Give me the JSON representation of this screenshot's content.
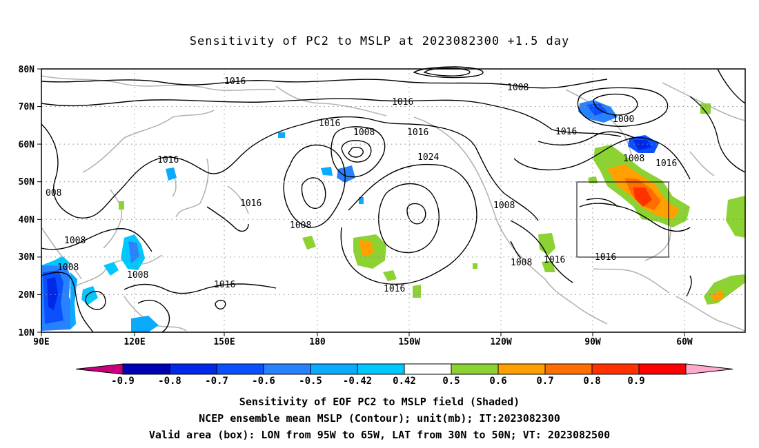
{
  "title": "Sensitivity of PC2 to MSLP at 2023082300 +1.5 day",
  "lat_labels": [
    "80N",
    "70N",
    "60N",
    "50N",
    "40N",
    "30N",
    "20N",
    "10N"
  ],
  "lon_labels": [
    "90E",
    "120E",
    "150E",
    "180",
    "150W",
    "120W",
    "90W",
    "60W"
  ],
  "contour_labels": [
    "1016",
    "1008",
    "1016",
    "1016",
    "1008",
    "1016",
    "1000",
    "1016",
    "1008",
    "1016",
    "008",
    "1016",
    "1024",
    "1016",
    "1008",
    "1008",
    "1008",
    "1008",
    "1016",
    "1016",
    "1016",
    "1008",
    "1016",
    "1008"
  ],
  "colorbar": {
    "labels": [
      "-0.9",
      "-0.8",
      "-0.7",
      "-0.6",
      "-0.5",
      "-0.42",
      "0.42",
      "0.5",
      "0.6",
      "0.7",
      "0.8",
      "0.9"
    ],
    "colors": [
      "#c8007a",
      "#0000b4",
      "#0028e8",
      "#0a50ff",
      "#2882ff",
      "#0aaaff",
      "#00c8ff",
      "#ffffff",
      "#8cd232",
      "#ffa000",
      "#ff6e00",
      "#ff3200",
      "#ff0000",
      "#ffaacc"
    ]
  },
  "captions": [
    "Sensitivity of EOF PC2 to MSLP field (Shaded)",
    "NCEP ensemble mean MSLP (Contour); unit(mb); IT:2023082300",
    "Valid area (box): LON from 95W to 65W, LAT from 30N to 50N; VT: 2023082500"
  ]
}
